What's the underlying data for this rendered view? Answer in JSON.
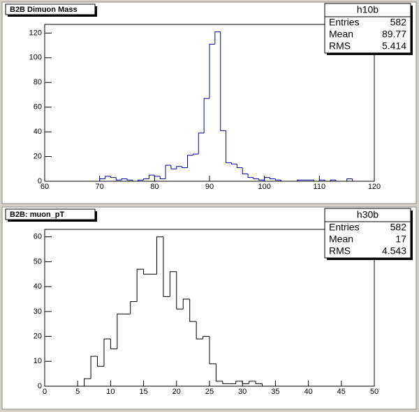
{
  "chart_data": [
    {
      "type": "histogram",
      "title": "B2B Dimuon Mass",
      "color": "#0000a0",
      "bins": [
        60,
        61,
        62,
        63,
        64,
        65,
        66,
        67,
        68,
        69,
        70,
        71,
        72,
        73,
        74,
        75,
        76,
        77,
        78,
        79,
        80,
        81,
        82,
        83,
        84,
        85,
        86,
        87,
        88,
        89,
        90,
        91,
        92,
        93,
        94,
        95,
        96,
        97,
        98,
        99,
        100,
        101,
        102,
        103,
        104,
        105,
        106,
        107,
        108,
        109,
        110,
        111,
        112,
        113,
        114,
        115,
        116,
        117,
        118,
        119,
        120
      ],
      "counts": [
        0,
        0,
        0,
        0,
        0,
        0,
        0,
        0,
        0,
        0,
        2,
        4,
        3,
        1,
        2,
        1,
        0,
        1,
        2,
        5,
        4,
        2,
        13,
        10,
        12,
        11,
        21,
        22,
        39,
        67,
        111,
        121,
        41,
        15,
        14,
        11,
        6,
        3,
        2,
        1,
        3,
        2,
        1,
        0,
        0,
        0,
        1,
        1,
        1,
        0,
        1,
        0,
        1,
        0,
        0,
        2,
        0,
        0,
        0,
        0
      ],
      "xlim": [
        60,
        120
      ],
      "xticks": [
        60,
        70,
        80,
        90,
        100,
        110,
        120
      ],
      "ylim": [
        0,
        127
      ],
      "yticks": [
        0,
        20,
        40,
        60,
        80,
        100,
        120
      ],
      "stats": {
        "name": "h10b",
        "labels": [
          "Entries",
          "Mean",
          "RMS"
        ],
        "values": [
          582,
          89.77,
          5.414
        ]
      }
    },
    {
      "type": "histogram",
      "title": "B2B: muon_pT",
      "color": "#000000",
      "bins": [
        0,
        1,
        2,
        3,
        4,
        5,
        6,
        7,
        8,
        9,
        10,
        11,
        12,
        13,
        14,
        15,
        16,
        17,
        18,
        19,
        20,
        21,
        22,
        23,
        24,
        25,
        26,
        27,
        28,
        29,
        30,
        31,
        32,
        33,
        34,
        35,
        36,
        37,
        38,
        39,
        40,
        41,
        42,
        43,
        44,
        45,
        46,
        47,
        48,
        49,
        50
      ],
      "counts": [
        0,
        0,
        0,
        0,
        0,
        0,
        3,
        12,
        8,
        19,
        15,
        29,
        29,
        34,
        47,
        45,
        45,
        60,
        36,
        46,
        31,
        35,
        26,
        19,
        20,
        9,
        2,
        1,
        1,
        2,
        1,
        2,
        1,
        0,
        0,
        0,
        0,
        0,
        0,
        0,
        0,
        0,
        0,
        0,
        0,
        0,
        0,
        0,
        0,
        0
      ],
      "xlim": [
        0,
        50
      ],
      "xticks": [
        0,
        5,
        10,
        15,
        20,
        25,
        30,
        35,
        40,
        45,
        50
      ],
      "ylim": [
        0,
        63
      ],
      "yticks": [
        0,
        10,
        20,
        30,
        40,
        50,
        60
      ],
      "stats": {
        "name": "h30b",
        "labels": [
          "Entries",
          "Mean",
          "RMS"
        ],
        "values": [
          582,
          17,
          4.543
        ]
      }
    }
  ]
}
